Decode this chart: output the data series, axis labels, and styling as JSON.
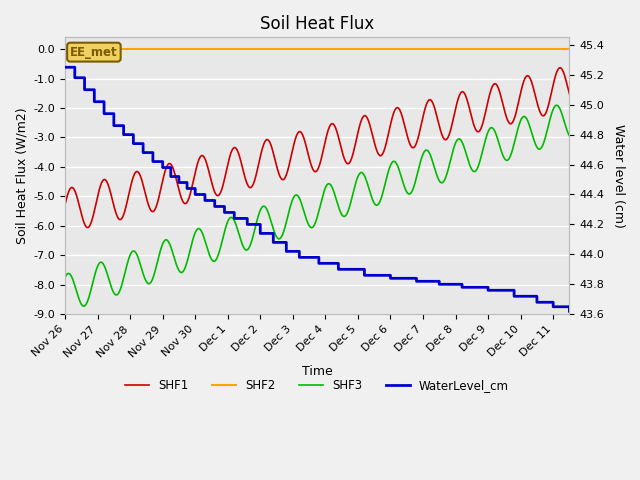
{
  "title": "Soil Heat Flux",
  "ylabel_left": "Soil Heat Flux (W/m2)",
  "ylabel_right": "Water level (cm)",
  "xlabel": "Time",
  "ylim_left": [
    -9.0,
    0.4
  ],
  "ylim_right": [
    43.6,
    45.45
  ],
  "yticks_left": [
    0.0,
    -1.0,
    -2.0,
    -3.0,
    -4.0,
    -5.0,
    -6.0,
    -7.0,
    -8.0,
    -9.0
  ],
  "yticks_right": [
    43.6,
    43.8,
    44.0,
    44.2,
    44.4,
    44.6,
    44.8,
    45.0,
    45.2,
    45.4
  ],
  "background_color": "#f0f0f0",
  "plot_bg_color": "#e8e8e8",
  "grid_color": "#ffffff",
  "shf1_color": "#cc0000",
  "shf2_color": "#ffa500",
  "shf3_color": "#00bb00",
  "water_color": "#0000cc",
  "annotation_text": "EE_met",
  "annotation_color": "#7a5c00",
  "annotation_bg": "#f0d060",
  "xlim": [
    0,
    15.5
  ],
  "xtick_labels": [
    "Nov 26",
    "Nov 27",
    "Nov 28",
    "Nov 29",
    "Nov 30",
    "Dec 1",
    "Dec 2",
    "Dec 3",
    "Dec 4",
    "Dec 5",
    "Dec 6",
    "Dec 7",
    "Dec 8",
    "Dec 9",
    "Dec 10",
    "Dec 11"
  ],
  "xtick_positions": [
    0,
    1,
    2,
    3,
    4,
    5,
    6,
    7,
    8,
    9,
    10,
    11,
    12,
    13,
    14,
    15
  ]
}
